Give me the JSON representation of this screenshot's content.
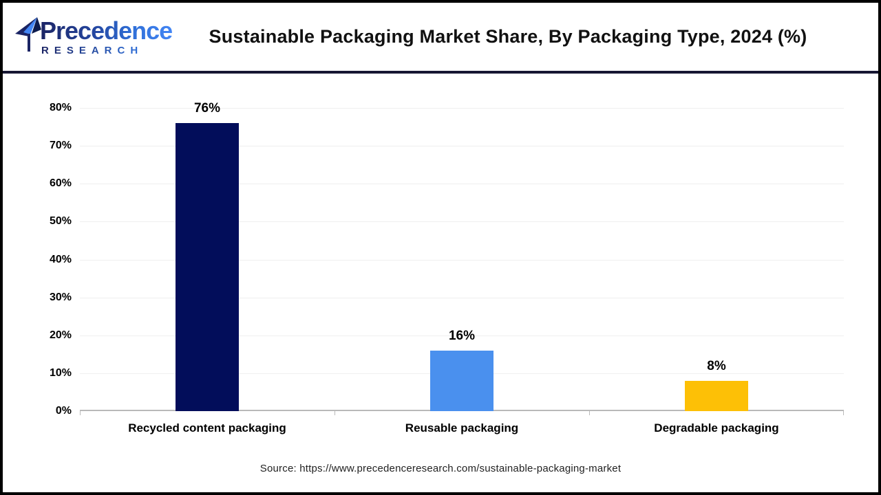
{
  "header": {
    "logo": {
      "line1": "Precedence",
      "line2": "RESEARCH"
    },
    "title": "Sustainable Packaging Market Share, By Packaging Type, 2024 (%)"
  },
  "chart_data": {
    "type": "bar",
    "title": "Sustainable Packaging Market Share, By Packaging Type, 2024 (%)",
    "categories": [
      "Recycled content packaging",
      "Reusable packaging",
      "Degradable packaging"
    ],
    "values": [
      76,
      16,
      8
    ],
    "value_labels": [
      "76%",
      "16%",
      "8%"
    ],
    "bar_colors": [
      "#020d5a",
      "#4a90ee",
      "#fdc006"
    ],
    "xlabel": "",
    "ylabel": "",
    "ylim": [
      0,
      80
    ],
    "ytick_step": 10,
    "ytick_labels": [
      "0%",
      "10%",
      "20%",
      "30%",
      "40%",
      "50%",
      "60%",
      "70%",
      "80%"
    ],
    "grid": true,
    "legend": false
  },
  "footer": {
    "source": "Source: https://www.precedenceresearch.com/sustainable-packaging-market"
  },
  "colors": {
    "bar_navy": "#020d5a",
    "bar_blue": "#4a90ee",
    "bar_yellow": "#fdc006",
    "grid_line": "#efefef",
    "axis_line": "#b9b9b9",
    "header_divider": "#171733",
    "frame_border": "#000000",
    "logo_navy": "#1b2464",
    "logo_blue": "#4285f4"
  }
}
